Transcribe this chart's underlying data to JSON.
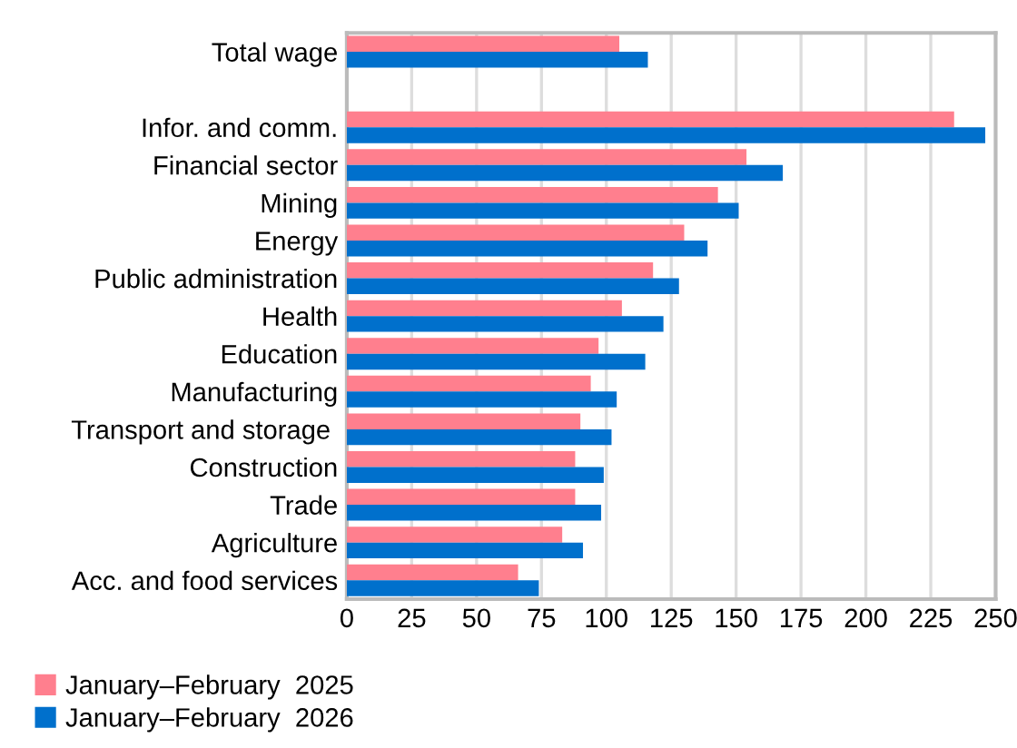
{
  "chart_data": {
    "type": "bar",
    "orientation": "horizontal",
    "categories": [
      "Total wage",
      null,
      "Infor. and comm.",
      "Financial sector",
      "Mining",
      "Energy",
      "Public administration",
      "Health",
      "Education",
      "Manufacturing",
      "Transport and storage ",
      "Construction",
      "Trade",
      "Agriculture",
      "Acc. and food services"
    ],
    "series": [
      {
        "name": "January–February  2025",
        "color": "#ff7f8e",
        "values": [
          105,
          null,
          234,
          154,
          143,
          130,
          118,
          106,
          97,
          94,
          90,
          88,
          88,
          83,
          66
        ]
      },
      {
        "name": "January–February  2026",
        "color": "#0070cc",
        "values": [
          116,
          null,
          246,
          168,
          151,
          139,
          128,
          122,
          115,
          104,
          102,
          99,
          98,
          91,
          74
        ]
      }
    ],
    "xlim": [
      0,
      250
    ],
    "xticks": [
      0,
      25,
      50,
      75,
      100,
      125,
      150,
      175,
      200,
      225,
      250
    ],
    "grid": "x",
    "legend": "bottom left"
  }
}
